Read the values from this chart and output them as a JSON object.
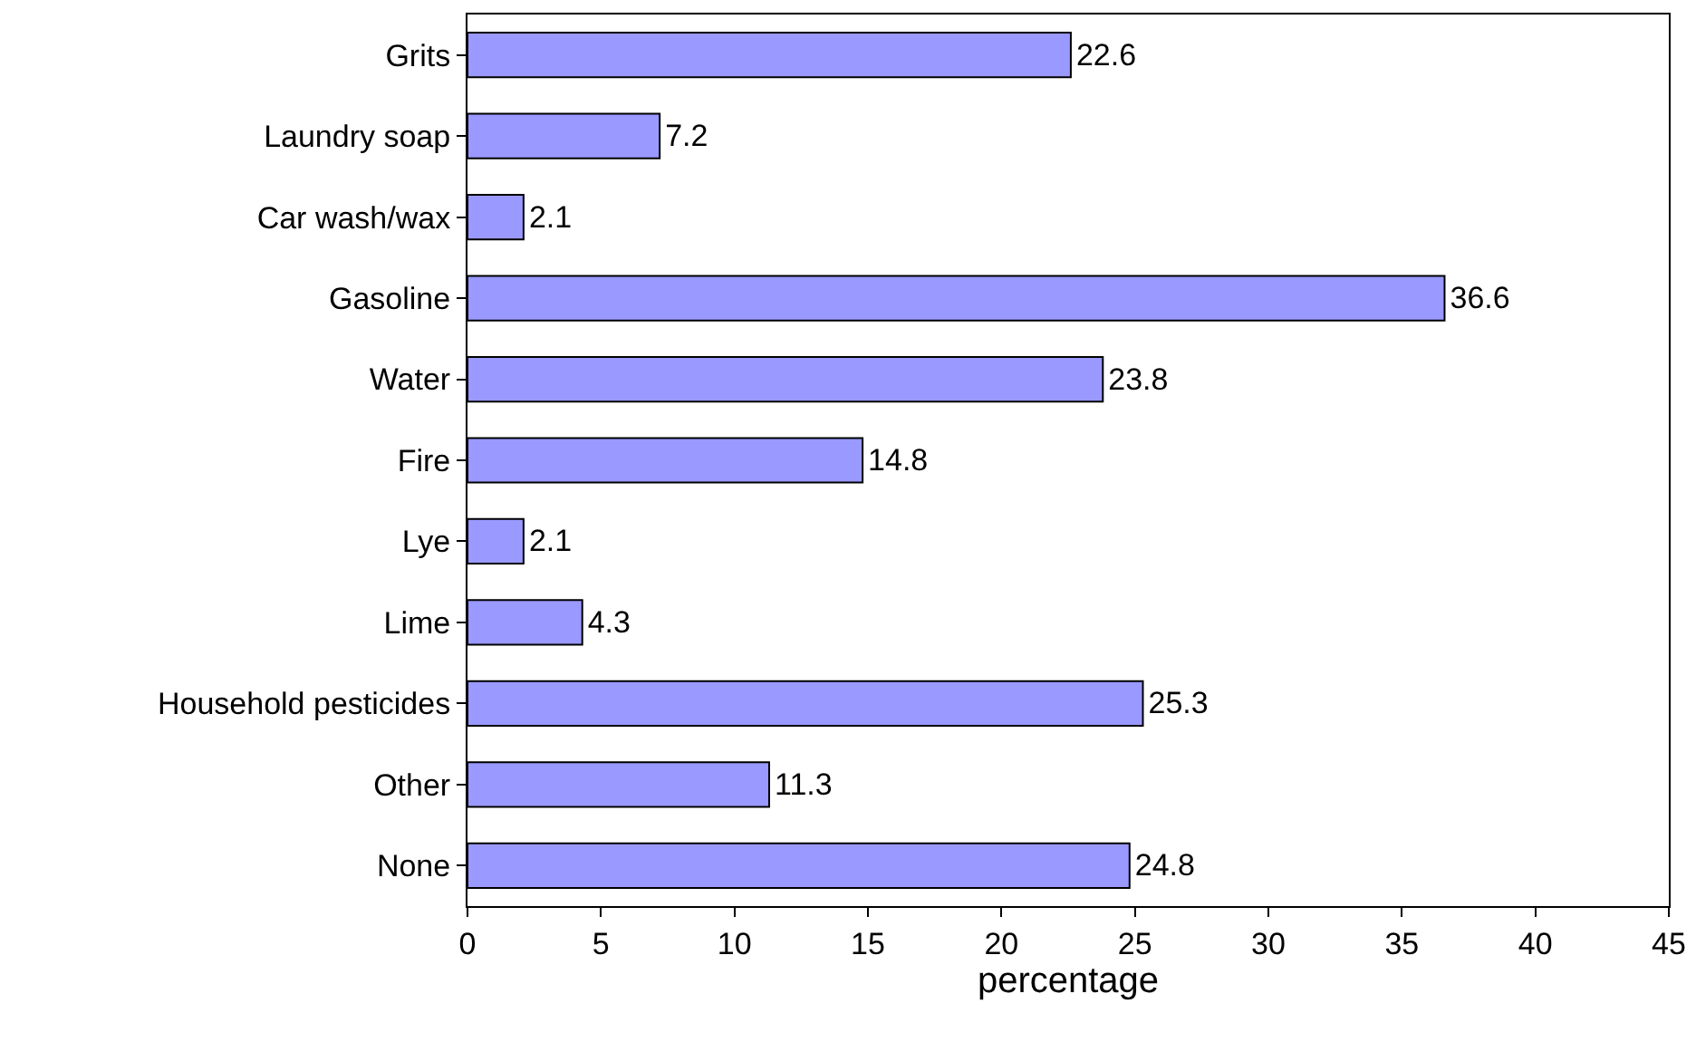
{
  "chart_data": {
    "type": "bar",
    "orientation": "horizontal",
    "categories": [
      "Grits",
      "Laundry soap",
      "Car wash/wax",
      "Gasoline",
      "Water",
      "Fire",
      "Lye",
      "Lime",
      "Household pesticides",
      "Other",
      "None"
    ],
    "values": [
      22.6,
      7.2,
      2.1,
      36.6,
      23.8,
      14.8,
      2.1,
      4.3,
      25.3,
      11.3,
      24.8
    ],
    "color": "#9999ff",
    "xlabel": "percentage",
    "xlim": [
      0,
      45
    ],
    "xticks": [
      0,
      5,
      10,
      15,
      20,
      25,
      30,
      35,
      40,
      45
    ],
    "data_labels": true,
    "grid": false
  }
}
